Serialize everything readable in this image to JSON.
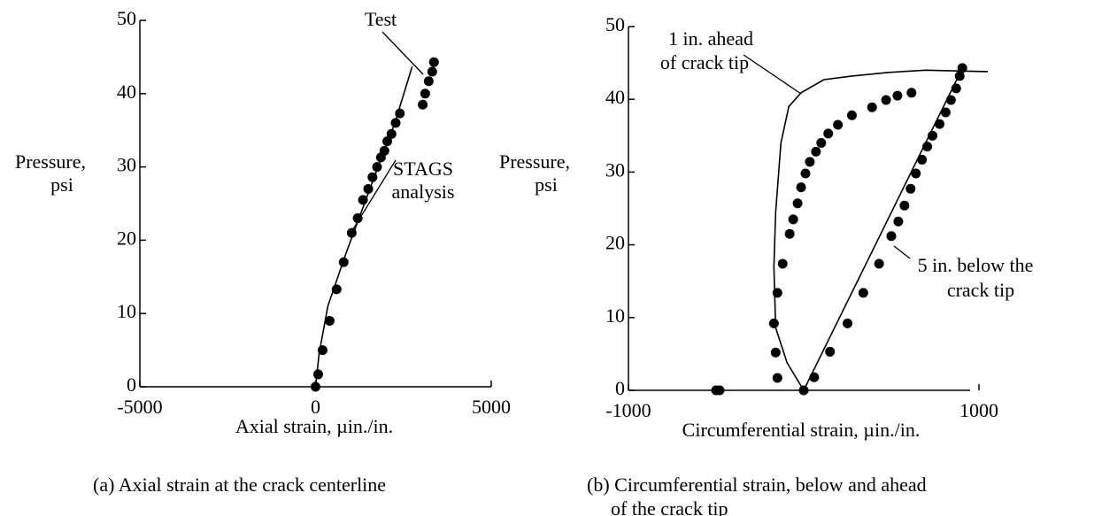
{
  "chart_data": [
    {
      "type": "scatter",
      "xlabel": "Axial strain, µin./in.",
      "ylabel": [
        "Pressure,",
        "psi"
      ],
      "caption": [
        "(a)  Axial strain at the crack centerline"
      ],
      "xlim": [
        -5000,
        5000
      ],
      "xticks": [
        -5000,
        0,
        5000
      ],
      "ylim": [
        0,
        50
      ],
      "yticks": [
        0,
        10,
        20,
        30,
        40,
        50
      ],
      "annotations": [
        {
          "lines": [
            "Test"
          ]
        },
        {
          "lines": [
            "STAGS",
            "analysis"
          ]
        }
      ],
      "series": [
        {
          "mode": "markers",
          "color": "#000000",
          "x": [
            0,
            75,
            200,
            400,
            600,
            800,
            1030,
            1200,
            1350,
            1500,
            1620,
            1750,
            1860,
            1960,
            2040,
            2160,
            2280,
            2400,
            3050,
            3120,
            3220,
            3320,
            3370
          ],
          "values": [
            0,
            1.7,
            5,
            9,
            13.3,
            17,
            21,
            23,
            25.5,
            27,
            28.6,
            30,
            31.3,
            32.2,
            33.5,
            34.5,
            36,
            37.3,
            38.5,
            40,
            41.7,
            43,
            44.3
          ]
        },
        {
          "mode": "line",
          "color": "#000000",
          "x": [
            0,
            100,
            350,
            850,
            1600,
            2250,
            2750
          ],
          "values": [
            0,
            4.5,
            11,
            18,
            27.7,
            35.9,
            43.7
          ]
        }
      ]
    },
    {
      "type": "scatter",
      "xlabel": "Circumferential strain, µin./in.",
      "ylabel": [
        "Pressure,",
        "psi"
      ],
      "caption": [
        "(b)  Circumferential strain, below and ahead",
        "of the crack tip"
      ],
      "xlim": [
        -1000,
        1000
      ],
      "xticks": [
        -1000,
        1000
      ],
      "ylim": [
        0,
        50
      ],
      "yticks": [
        0,
        10,
        20,
        30,
        40,
        50
      ],
      "annotations": [
        {
          "lines": [
            "1 in. ahead",
            "of crack tip"
          ]
        },
        {
          "lines": [
            "5 in. below the",
            "crack tip"
          ]
        }
      ],
      "series": [
        {
          "mode": "markers",
          "color": "#000000",
          "x": [
            -500,
            -480,
            0,
            -150,
            -160,
            -170,
            -150,
            -120,
            -80,
            -60,
            -35,
            -15,
            10,
            35,
            70,
            100,
            140,
            195,
            275,
            390,
            470,
            535,
            615
          ],
          "values": [
            0,
            0,
            0,
            1.7,
            5.2,
            9.2,
            13.4,
            17.4,
            21.5,
            23.5,
            25.7,
            27.9,
            29.8,
            31.4,
            32.8,
            34,
            35.3,
            36.5,
            37.8,
            38.9,
            39.9,
            40.5,
            40.9
          ]
        },
        {
          "mode": "markers",
          "color": "#000000",
          "x": [
            60,
            150,
            250,
            340,
            430,
            500,
            540,
            575,
            610,
            640,
            675,
            705,
            735,
            775,
            810,
            840,
            870,
            890,
            905
          ],
          "values": [
            1.8,
            5.3,
            9.2,
            13.4,
            17.4,
            21.2,
            23.2,
            25.4,
            27.7,
            29.8,
            31.7,
            33.5,
            35,
            36.6,
            38.2,
            39.9,
            41.5,
            43.2,
            44.3
          ]
        },
        {
          "mode": "line",
          "color": "#000000",
          "x": [
            0,
            -95,
            -160,
            -170,
            -160,
            -130,
            -85,
            -15,
            115,
            275,
            485,
            695,
            1050
          ],
          "values": [
            0,
            3.8,
            8.6,
            17,
            24.5,
            34,
            39,
            40.9,
            42.7,
            43.2,
            43.7,
            44,
            43.8
          ]
        },
        {
          "mode": "line",
          "color": "#000000",
          "x": [
            0,
            910
          ],
          "values": [
            0,
            44.5
          ]
        }
      ]
    }
  ]
}
